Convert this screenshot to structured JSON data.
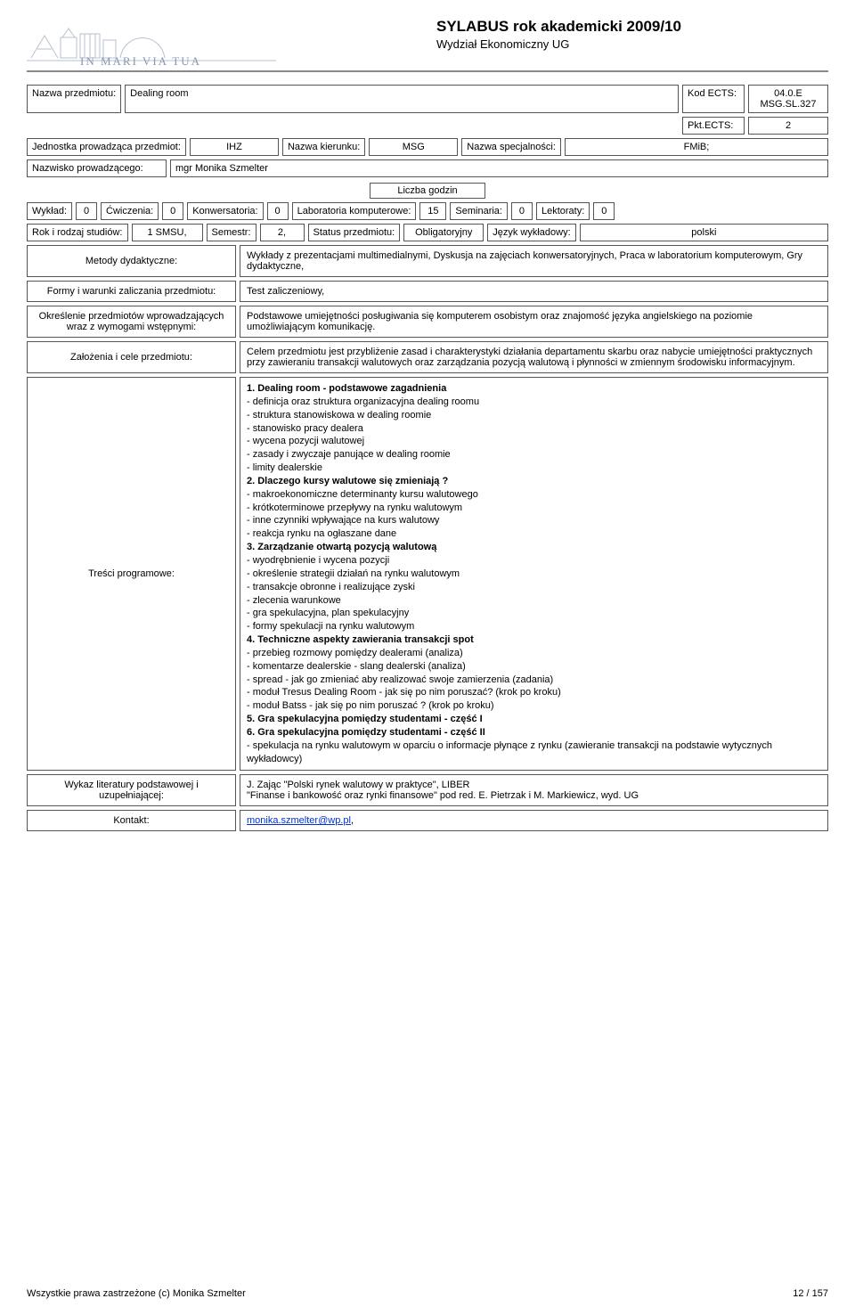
{
  "header": {
    "title": "SYLABUS rok akademicki 2009/10",
    "subtitle": "Wydział Ekonomiczny UG"
  },
  "labels": {
    "nazwa_przedmiotu": "Nazwa przedmiotu:",
    "kod_ects": "Kod ECTS:",
    "pkt_ects": "Pkt.ECTS:",
    "jednostka": "Jednostka prowadząca przedmiot:",
    "nazwa_kierunku": "Nazwa kierunku:",
    "nazwa_specjalnosci": "Nazwa specjalności:",
    "nazwisko_prow": "Nazwisko prowadzącego:",
    "liczba_godzin": "Liczba godzin",
    "wyklad": "Wykład:",
    "cwiczenia": "Ćwiczenia:",
    "konwersatoria": "Konwersatoria:",
    "laboratoria": "Laboratoria komputerowe:",
    "seminaria": "Seminaria:",
    "lektoraty": "Lektoraty:",
    "rok_rodzaj": "Rok i rodzaj studiów:",
    "semestr": "Semestr:",
    "status": "Status przedmiotu:",
    "jezyk": "Język wykładowy:",
    "metody": "Metody dydaktyczne:",
    "formy": "Formy i warunki zaliczania przedmiotu:",
    "okreslenie": "Określenie przedmiotów wprowadzających wraz z wymogami wstępnymi:",
    "zalozenia": "Założenia i cele przedmiotu:",
    "tresci": "Treści programowe:",
    "wykaz": "Wykaz literatury podstawowej i uzupełniającej:",
    "kontakt": "Kontakt:"
  },
  "values": {
    "nazwa_przedmiotu": "Dealing room",
    "kod_ects": "04.0.E MSG.SL.327",
    "pkt_ects": "2",
    "jednostka": "IHZ",
    "nazwa_kierunku": "MSG",
    "nazwa_specjalnosci": "FMiB;",
    "nazwisko_prow": "mgr Monika Szmelter",
    "wyklad": "0",
    "cwiczenia": "0",
    "konwersatoria": "0",
    "laboratoria": "15",
    "seminaria": "0",
    "lektoraty": "0",
    "rok_rodzaj": "1 SMSU,",
    "semestr": "2,",
    "status": "Obligatoryjny",
    "jezyk": "polski",
    "metody": "Wykłady z prezentacjami multimedialnymi, Dyskusja na zajęciach konwersatoryjnych, Praca w laboratorium komputerowym, Gry dydaktyczne,",
    "formy": "Test zaliczeniowy,",
    "okreslenie": "Podstawowe umiejętności posługiwania się komputerem osobistym oraz znajomość języka angielskiego na poziomie umożliwiającym komunikację.",
    "zalozenia": "Celem przedmiotu jest przybliżenie zasad i charakterystyki działania departamentu skarbu oraz nabycie umiejętności praktycznych przy zawieraniu transakcji walutowych oraz zarządzania pozycją walutową i płynności w zmiennym środowisku informacyjnym.",
    "wykaz": "J. Zając \"Polski rynek walutowy w praktyce\",  LIBER\n\"Finanse i bankowość oraz rynki finansowe\" pod red. E. Pietrzak i  M. Markiewicz, wyd. UG",
    "kontakt_email": "monika.szmelter@wp.pl",
    "kontakt_suffix": ","
  },
  "tresci": {
    "h1": "1. Dealing room - podstawowe zagadnienia",
    "s1": [
      "- definicja oraz struktura organizacyjna dealing roomu",
      "- struktura stanowiskowa w dealing roomie",
      "- stanowisko pracy dealera",
      "- wycena pozycji walutowej",
      "- zasady i zwyczaje panujące w dealing roomie",
      "- limity dealerskie"
    ],
    "h2": "2. Dlaczego kursy walutowe się zmieniają ?",
    "s2": [
      "- makroekonomiczne determinanty kursu walutowego",
      "- krótkoterminowe przepływy na rynku walutowym",
      "- inne czynniki wpływające na kurs walutowy",
      "- reakcja rynku na ogłaszane dane"
    ],
    "h3": "3. Zarządzanie otwartą pozycją walutową",
    "s3": [
      "- wyodrębnienie i wycena pozycji",
      "- określenie strategii działań na rynku walutowym",
      "- transakcje obronne i realizujące zyski",
      "- zlecenia warunkowe",
      "- gra spekulacyjna, plan spekulacyjny",
      "- formy spekulacji na rynku walutowym"
    ],
    "h4": "4. Techniczne aspekty zawierania transakcji spot",
    "s4": [
      "- przebieg rozmowy pomiędzy dealerami (analiza)",
      "- komentarze dealerskie - slang dealerski (analiza)",
      "- spread - jak go zmieniać aby realizować swoje zamierzenia (zadania)",
      "- moduł Tresus Dealing Room - jak się po nim poruszać? (krok po kroku)",
      "- moduł Batss - jak się po nim poruszać ? (krok po kroku)"
    ],
    "h5": "5. Gra spekulacyjna pomiędzy studentami - część I",
    "h6": "6. Gra spekulacyjna pomiędzy studentami - część II",
    "s6": [
      "- spekulacja na rynku walutowym w oparciu o informacje płynące z rynku (zawieranie transakcji na podstawie wytycznych wykładowcy)"
    ]
  },
  "footer": {
    "left": "Wszystkie prawa zastrzeżone (c) Monika Szmelter",
    "right": "12 / 157"
  }
}
